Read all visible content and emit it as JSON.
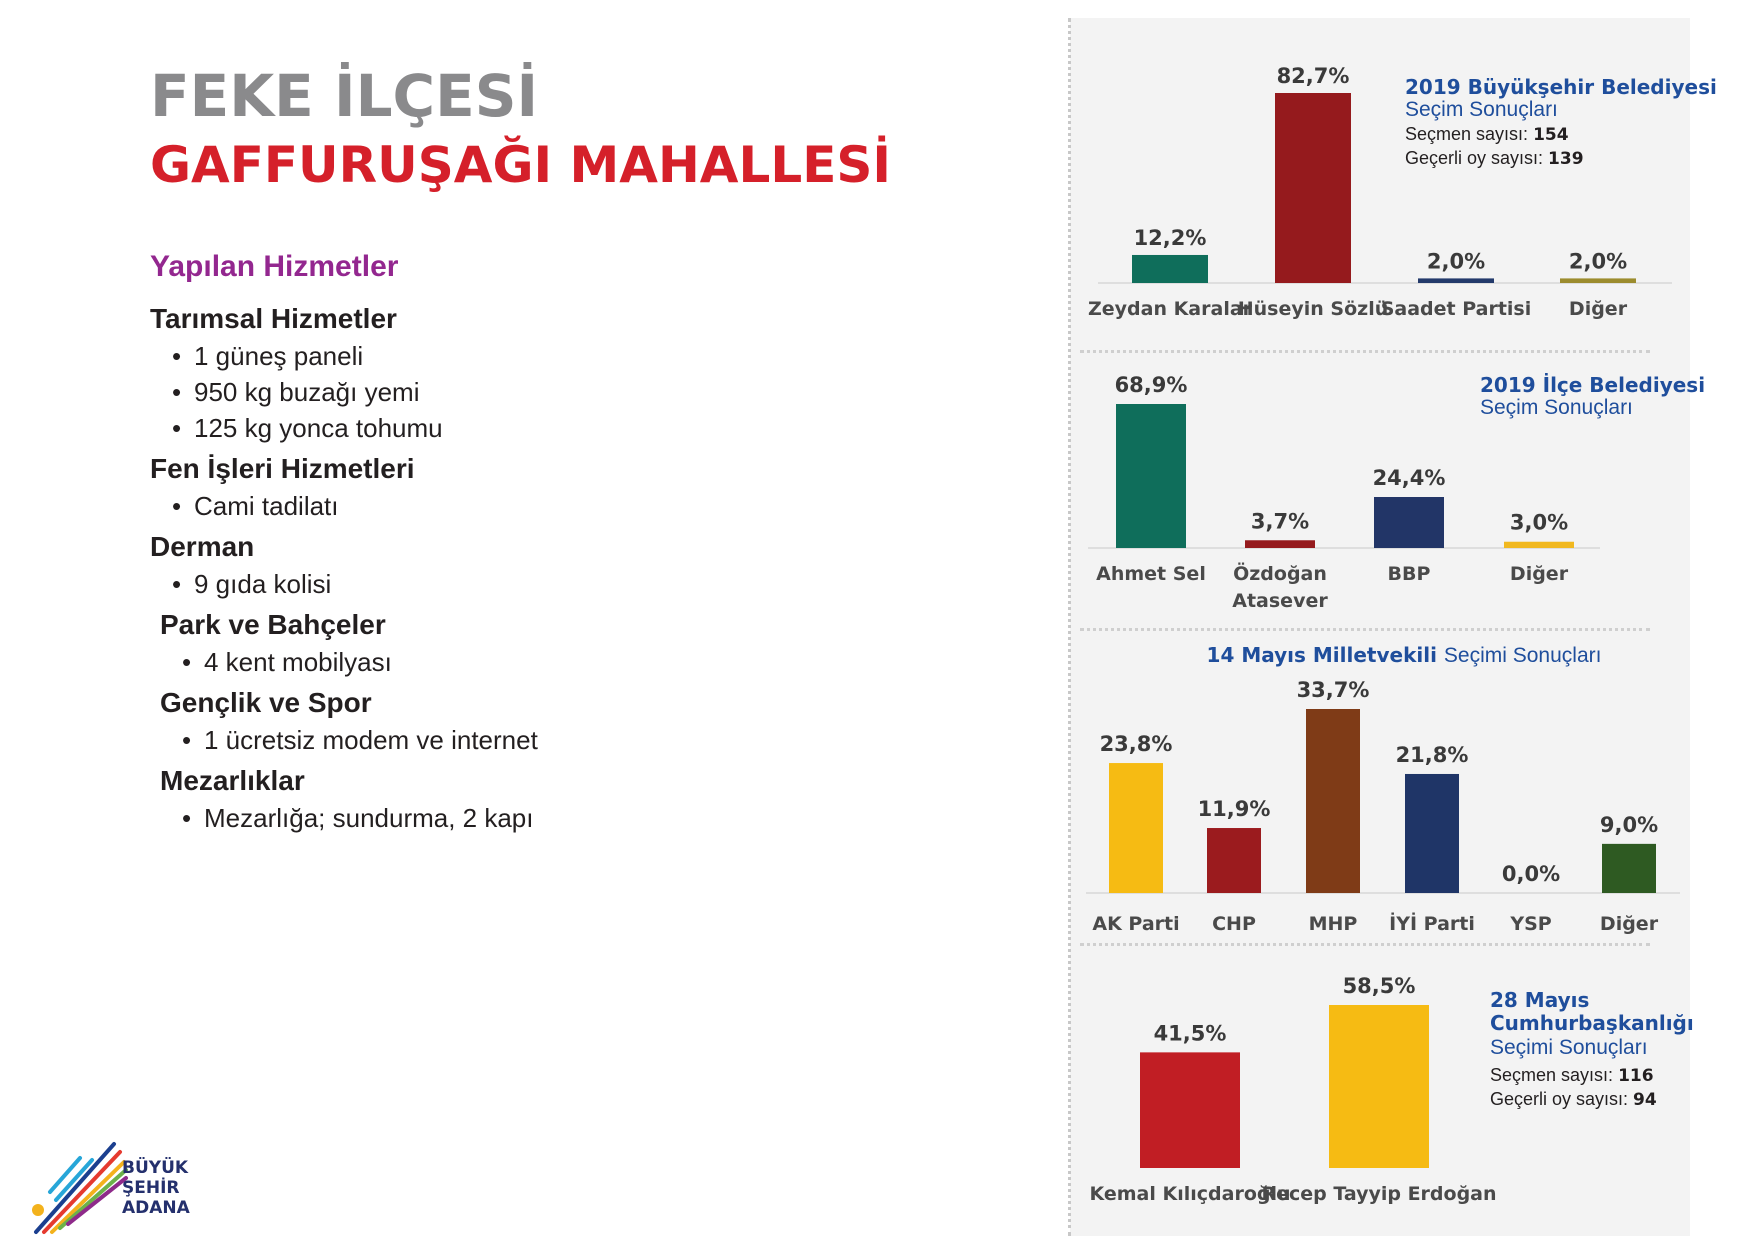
{
  "header": {
    "district": "FEKE İLÇESİ",
    "neighborhood": "GAFFURUŞAĞI MAHALLESİ"
  },
  "services": {
    "title": "Yapılan Hizmetler",
    "categories": [
      {
        "name": "Tarımsal Hizmetler",
        "items": [
          "1 güneş paneli",
          "950 kg buzağı yemi",
          "125 kg yonca tohumu"
        ]
      },
      {
        "name": "Fen İşleri Hizmetleri",
        "items": [
          "Cami tadilatı"
        ]
      },
      {
        "name": "Derman",
        "items": [
          "9 gıda kolisi"
        ]
      },
      {
        "name": "Park ve Bahçeler",
        "items": [
          "4 kent mobilyası"
        ]
      },
      {
        "name": "Gençlik ve Spor",
        "items": [
          "1 ücretsiz modem ve internet"
        ]
      },
      {
        "name": "Mezarlıklar",
        "items": [
          "Mezarlığa; sundurma, 2 kapı"
        ]
      }
    ]
  },
  "logo": {
    "line1": "BÜYÜK",
    "line2": "ŞEHİR",
    "line3": "ADANA"
  },
  "colors": {
    "title_gray": "#8a8a8c",
    "title_red": "#d5202a",
    "services_purple": "#93278f",
    "chart_title_blue": "#1f4e9c"
  },
  "chart_data": [
    {
      "type": "bar",
      "title_bold": "2019 Büyükşehir Belediyesi",
      "title_normal": "Seçim Sonuçları",
      "info": [
        {
          "label": "Seçmen sayısı: ",
          "value": "154"
        },
        {
          "label": "Geçerli oy sayısı: ",
          "value": "139"
        }
      ],
      "categories": [
        "Zeydan Karalar",
        "Hüseyin Sözlü",
        "Saadet Partisi",
        "Diğer"
      ],
      "values": [
        12.2,
        82.7,
        2.0,
        2.0
      ],
      "value_labels": [
        "12,2%",
        "82,7%",
        "2,0%",
        "2,0%"
      ],
      "colors": [
        "#0f6e5b",
        "#951a1d",
        "#233a6b",
        "#9c8c2e"
      ],
      "ylim": [
        0,
        82.7
      ]
    },
    {
      "type": "bar",
      "title_bold": "2019 İlçe Belediyesi",
      "title_normal": "Seçim Sonuçları",
      "categories": [
        "Ahmet Sel",
        "Özdoğan Atasever",
        "BBP",
        "Diğer"
      ],
      "category_lines": [
        [
          "Ahmet Sel"
        ],
        [
          "Özdoğan",
          "Atasever"
        ],
        [
          "BBP"
        ],
        [
          "Diğer"
        ]
      ],
      "values": [
        68.9,
        3.7,
        24.4,
        3.0
      ],
      "value_labels": [
        "68,9%",
        "3,7%",
        "24,4%",
        "3,0%"
      ],
      "colors": [
        "#0f6e5b",
        "#951a1d",
        "#223567",
        "#f1b81f"
      ],
      "ylim": [
        0,
        68.9
      ]
    },
    {
      "type": "bar",
      "title_bold": "14 Mayıs Milletvekili",
      "title_normal": "Seçimi Sonuçları",
      "categories": [
        "AK Parti",
        "CHP",
        "MHP",
        "İYİ Parti",
        "YSP",
        "Diğer"
      ],
      "values": [
        23.8,
        11.9,
        33.7,
        21.8,
        0.0,
        9.0
      ],
      "value_labels": [
        "23,8%",
        "11,9%",
        "33,7%",
        "21,8%",
        "0,0%",
        "9,0%"
      ],
      "colors": [
        "#f6bb13",
        "#9b1b1e",
        "#7f3b17",
        "#1f3567",
        "#7a2c7e",
        "#2e5a22"
      ],
      "ylim": [
        0,
        33.7
      ]
    },
    {
      "type": "bar",
      "title_lines_bold": [
        "28 Mayıs",
        "Cumhurbaşkanlığı"
      ],
      "title_normal": "Seçimi Sonuçları",
      "info": [
        {
          "label": "Seçmen sayısı: ",
          "value": "116"
        },
        {
          "label": "Geçerli oy sayısı: ",
          "value": "94"
        }
      ],
      "categories": [
        "Kemal Kılıçdaroğlu",
        "Recep Tayyip Erdoğan"
      ],
      "values": [
        41.5,
        58.5
      ],
      "value_labels": [
        "41,5%",
        "58,5%"
      ],
      "colors": [
        "#c11e24",
        "#f6bb13"
      ],
      "ylim": [
        0,
        58.5
      ]
    }
  ]
}
